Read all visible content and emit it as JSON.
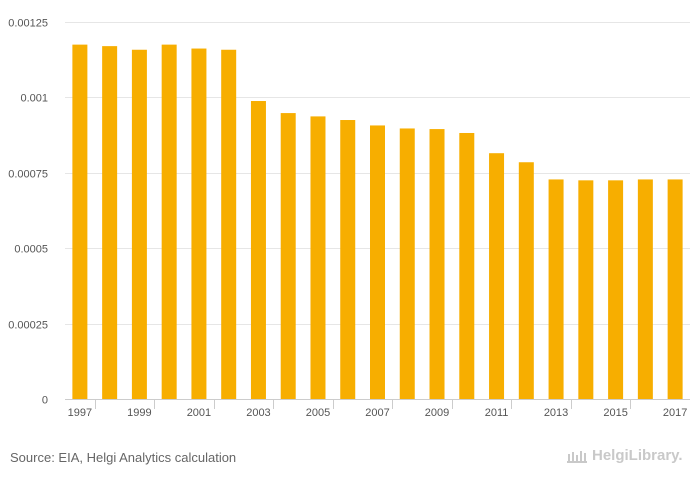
{
  "chart_data": {
    "type": "bar",
    "categories": [
      "1997",
      "1998",
      "1999",
      "2000",
      "2001",
      "2002",
      "2003",
      "2004",
      "2005",
      "2006",
      "2007",
      "2008",
      "2009",
      "2010",
      "2011",
      "2012",
      "2013",
      "2014",
      "2015",
      "2016",
      "2017"
    ],
    "values": [
      0.001175,
      0.00117,
      0.001158,
      0.001175,
      0.001162,
      0.001158,
      0.000988,
      0.000948,
      0.000937,
      0.000925,
      0.000907,
      0.000897,
      0.000895,
      0.000882,
      0.000815,
      0.000785,
      0.000728,
      0.000725,
      0.000725,
      0.000728,
      0.000728
    ],
    "x_tick_labels": [
      "1997",
      "1999",
      "2001",
      "2003",
      "2005",
      "2007",
      "2009",
      "2011",
      "2013",
      "2015",
      "2017"
    ],
    "y_ticks": [
      0,
      0.00025,
      0.0005,
      0.00075,
      0.001,
      0.00125
    ],
    "y_tick_labels": [
      "0",
      "0.00025",
      "0.0005",
      "0.00075",
      "0.001",
      "0.00125"
    ],
    "ylim": [
      0,
      0.00125
    ],
    "title": "",
    "xlabel": "",
    "ylabel": "",
    "bar_color": "#f7ae00",
    "grid": true
  },
  "footer": {
    "source": "Source: EIA, Helgi Analytics calculation",
    "logo_text": "HelgiLibrary."
  }
}
